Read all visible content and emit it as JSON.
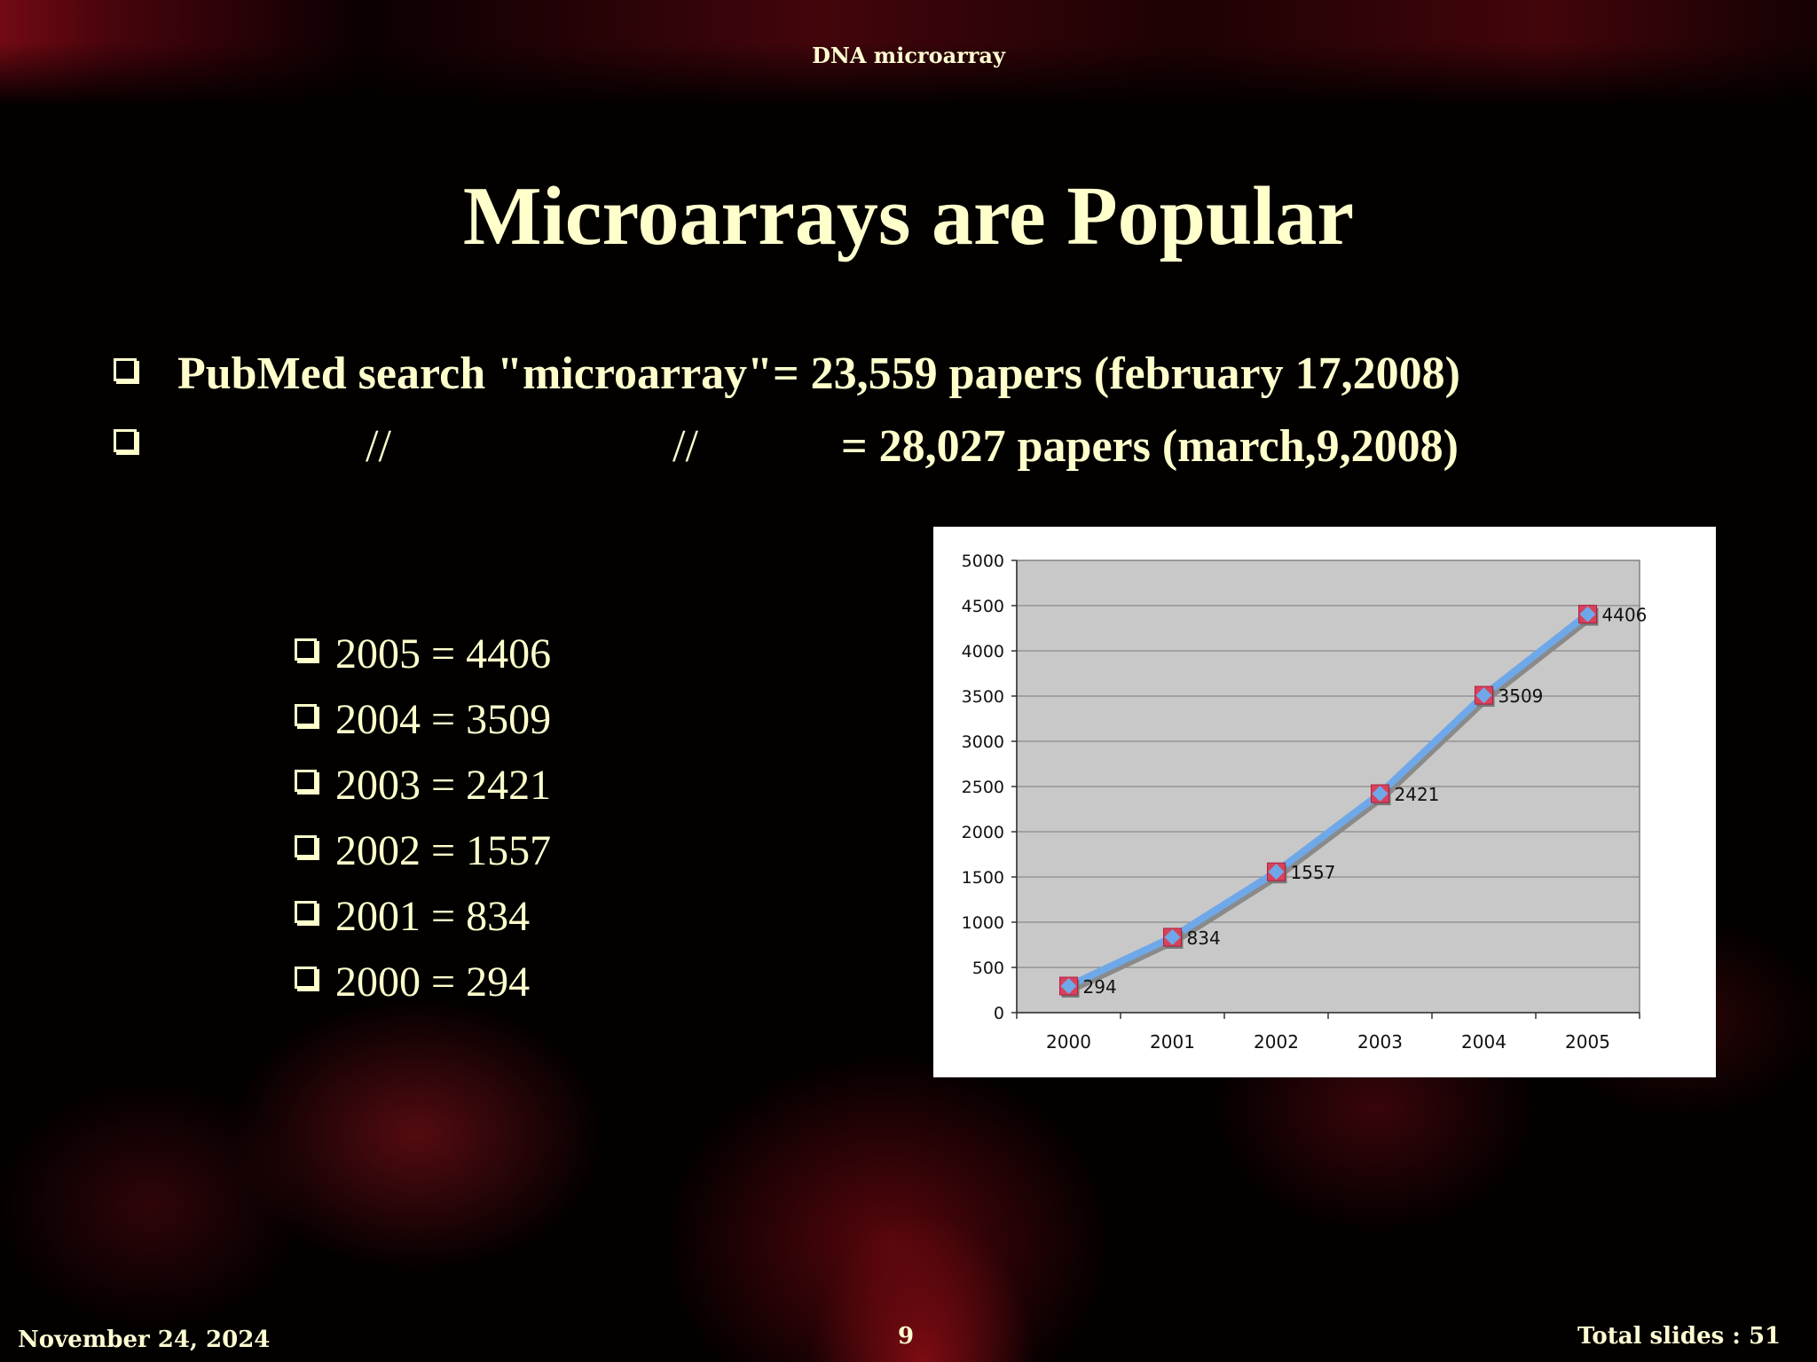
{
  "header": {
    "title": "DNA microarray"
  },
  "slide_title": "Microarrays are Popular",
  "bullets": {
    "line1": "PubMed search \"microarray\"= 23,559 papers (february 17,2008)",
    "line2_ditto_a": "//",
    "line2_ditto_b": "//",
    "line2_text": "=  28,027 papers (march,9,2008)"
  },
  "year_list": [
    "2005 = 4406",
    "2004 = 3509",
    "2003 = 2421",
    "2002 = 1557",
    "2001 = 834",
    "2000 = 294"
  ],
  "chart_data": {
    "type": "line",
    "categories": [
      "2000",
      "2001",
      "2002",
      "2003",
      "2004",
      "2005"
    ],
    "series": [
      {
        "values": [
          294,
          834,
          1557,
          2421,
          3509,
          4406
        ],
        "color": "#6fa8e8",
        "marker_color": "#d9415a"
      }
    ],
    "ylim": [
      0,
      5000
    ],
    "yticks": [
      "0",
      "500",
      "1000",
      "1500",
      "2000",
      "2500",
      "3000",
      "3500",
      "4000",
      "4500",
      "5000"
    ],
    "data_labels": [
      "294",
      "834",
      "1557",
      "2421",
      "3509",
      "4406"
    ],
    "grid": true,
    "plot_background": "#c8c8c8",
    "legend": "none"
  },
  "footer": {
    "date": "November 24, 2024",
    "page_number": "9",
    "total": "Total slides : 51"
  }
}
